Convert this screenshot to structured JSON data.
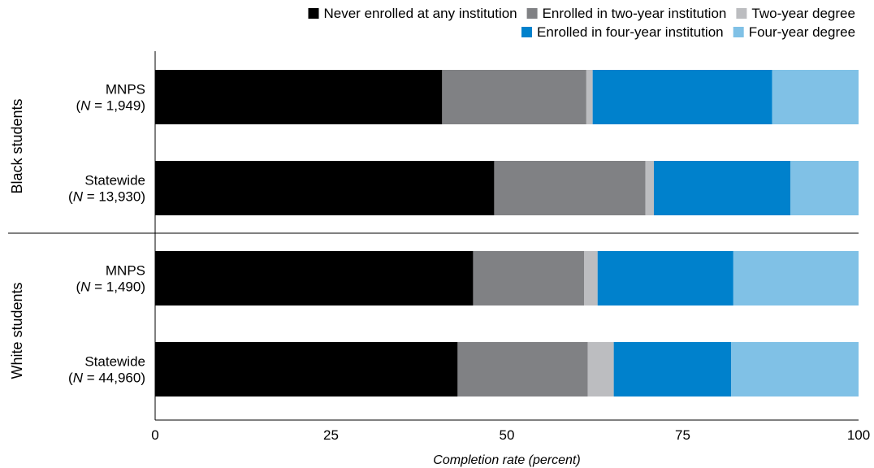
{
  "chart_data": {
    "type": "bar",
    "orientation": "horizontal",
    "stacked": true,
    "title": "",
    "xlabel": "Completion rate (percent)",
    "ylabel": "",
    "xlim": [
      0,
      100
    ],
    "x_ticks": [
      "0",
      "25",
      "50",
      "75",
      "100"
    ],
    "grid": false,
    "legend_position": "top-right",
    "groups": [
      {
        "label": "Black students",
        "bars": [
          {
            "name": "MNPS",
            "n_prefix": "(",
            "n_italic": "N",
            "n_suffix": " = 1,949)"
          },
          {
            "name": "Statewide",
            "n_prefix": "(",
            "n_italic": "N",
            "n_suffix": " = 13,930)"
          }
        ]
      },
      {
        "label": "White students",
        "bars": [
          {
            "name": "MNPS",
            "n_prefix": "(",
            "n_italic": "N",
            "n_suffix": " = 1,490)"
          },
          {
            "name": "Statewide",
            "n_prefix": "(",
            "n_italic": "N",
            "n_suffix": " = 44,960)"
          }
        ]
      }
    ],
    "series": [
      {
        "name": "Never enrolled at any institution",
        "color": "#000000",
        "values": [
          40.8,
          48.2,
          45.2,
          43.0
        ]
      },
      {
        "name": "Enrolled in two-year institution",
        "color": "#808184",
        "values": [
          20.5,
          21.5,
          15.8,
          18.5
        ]
      },
      {
        "name": "Two-year degree",
        "color": "#bcbdc0",
        "values": [
          0.9,
          1.2,
          1.9,
          3.7
        ]
      },
      {
        "name": "Enrolled in four-year institution",
        "color": "#0081cc",
        "values": [
          25.5,
          19.4,
          19.3,
          16.7
        ]
      },
      {
        "name": "Four-year degree",
        "color": "#80c1e6",
        "values": [
          12.3,
          9.7,
          17.8,
          18.1
        ]
      }
    ]
  }
}
